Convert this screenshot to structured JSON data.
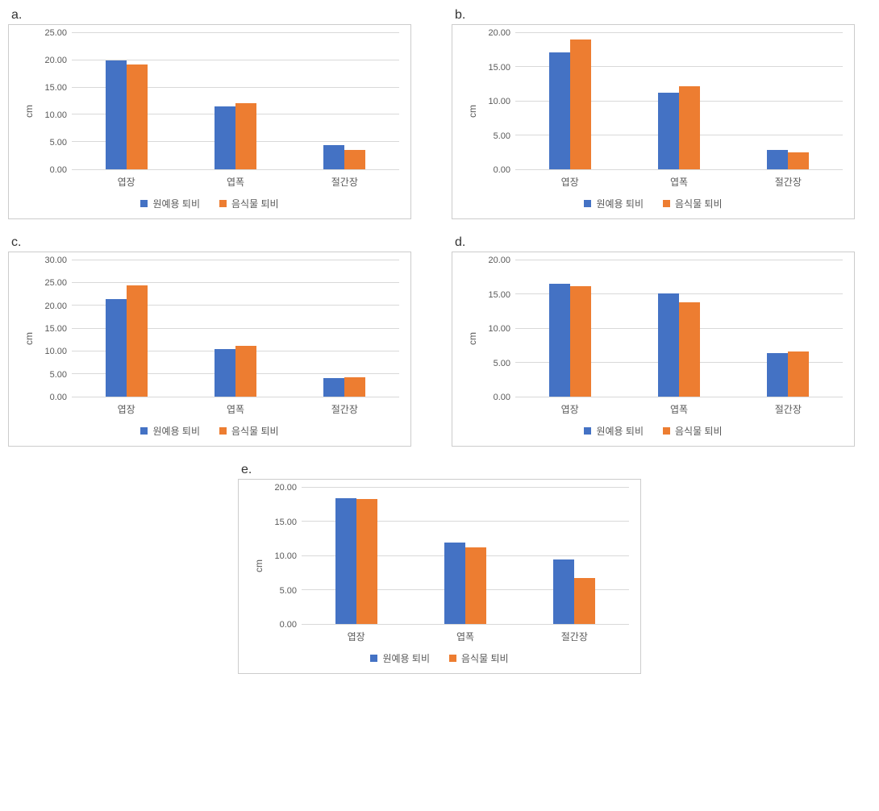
{
  "colors": {
    "series1": "#4472c4",
    "series2": "#ed7d31",
    "grid": "#d9d9d9",
    "text": "#595959",
    "border": "#cccccc",
    "bg": "#ffffff"
  },
  "legend": {
    "s1": "원예용 퇴비",
    "s2": "음식물 퇴비"
  },
  "categories": [
    "엽장",
    "엽폭",
    "절간장"
  ],
  "charts": {
    "a": {
      "label": "a.",
      "ylabel": "cm",
      "ymax": 25,
      "ystep": 5,
      "s1": [
        20.0,
        11.5,
        4.5
      ],
      "s2": [
        19.2,
        12.2,
        3.5
      ]
    },
    "b": {
      "label": "b.",
      "ylabel": "cm",
      "ymax": 20,
      "ystep": 5,
      "s1": [
        17.2,
        11.2,
        2.9
      ],
      "s2": [
        19.0,
        12.2,
        2.5
      ]
    },
    "c": {
      "label": "c.",
      "ylabel": "cm",
      "ymax": 30,
      "ystep": 5,
      "s1": [
        21.5,
        10.5,
        4.0
      ],
      "s2": [
        24.5,
        11.2,
        4.3
      ]
    },
    "d": {
      "label": "d.",
      "ylabel": "cm",
      "ymax": 20,
      "ystep": 5,
      "s1": [
        16.6,
        15.1,
        6.4
      ],
      "s2": [
        16.2,
        13.9,
        6.6
      ]
    },
    "e": {
      "label": "e.",
      "ylabel": "cm",
      "ymax": 20,
      "ystep": 5,
      "s1": [
        18.5,
        11.9,
        9.5
      ],
      "s2": [
        18.3,
        11.2,
        6.8
      ]
    }
  }
}
